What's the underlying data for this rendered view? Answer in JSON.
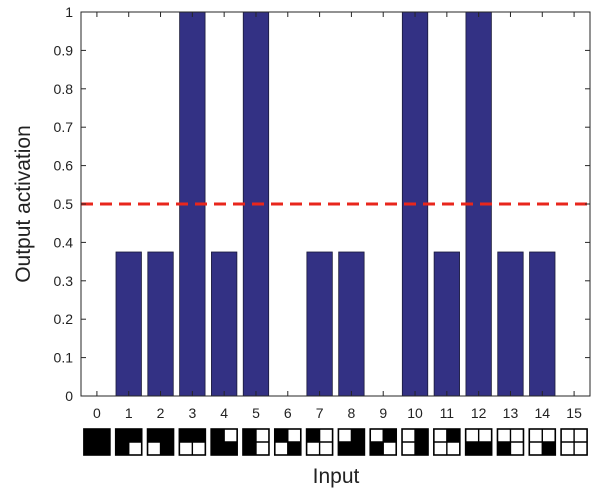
{
  "chart_data": {
    "type": "bar",
    "xlabel": "Input",
    "ylabel": "Output activation",
    "ylim": [
      0,
      1
    ],
    "yticks": [
      "0",
      "0.1",
      "0.2",
      "0.3",
      "0.4",
      "0.5",
      "0.6",
      "0.7",
      "0.8",
      "0.9",
      "1"
    ],
    "grid": false,
    "categories": [
      "0",
      "1",
      "2",
      "3",
      "4",
      "5",
      "6",
      "7",
      "8",
      "9",
      "10",
      "11",
      "12",
      "13",
      "14",
      "15"
    ],
    "values": [
      0,
      0.375,
      0.375,
      1,
      0.375,
      1,
      0,
      0.375,
      0.375,
      0,
      1,
      0.375,
      1,
      0.375,
      0.375,
      0
    ],
    "threshold": {
      "value": 0.5,
      "style": "dashed",
      "color": "#e8261c"
    },
    "bar_color": "#333184",
    "input_patterns": [
      [
        1,
        1,
        1,
        1
      ],
      [
        1,
        1,
        1,
        0
      ],
      [
        1,
        1,
        0,
        1
      ],
      [
        1,
        1,
        0,
        0
      ],
      [
        1,
        0,
        1,
        1
      ],
      [
        1,
        0,
        1,
        0
      ],
      [
        1,
        0,
        0,
        1
      ],
      [
        1,
        0,
        0,
        0
      ],
      [
        0,
        1,
        1,
        1
      ],
      [
        0,
        1,
        1,
        0
      ],
      [
        0,
        1,
        0,
        1
      ],
      [
        0,
        1,
        0,
        0
      ],
      [
        0,
        0,
        1,
        1
      ],
      [
        0,
        0,
        1,
        0
      ],
      [
        0,
        0,
        0,
        1
      ],
      [
        0,
        0,
        0,
        0
      ]
    ]
  }
}
